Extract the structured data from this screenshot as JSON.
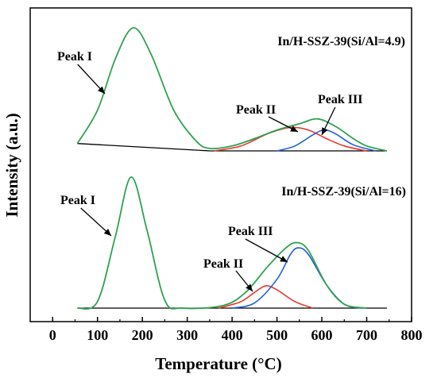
{
  "chart_data": {
    "type": "line",
    "xlabel": "Temperature (°C)",
    "ylabel": "Intensity (a.u.)",
    "xlim": [
      -50,
      800
    ],
    "xticks": [
      0,
      100,
      200,
      300,
      400,
      500,
      600,
      700,
      800
    ],
    "xtick_labels": [
      "0",
      "100",
      "200",
      "300",
      "400",
      "500",
      "600",
      "700",
      "800"
    ],
    "yticks": false,
    "grid": false,
    "legend": "none",
    "colors": {
      "total": "#2ca24f",
      "peak_ii": "#e8382c",
      "peak_iii": "#1f5fd6",
      "baseline": "#000000"
    },
    "panels": [
      {
        "label": "In/H-SSZ-39(Si/Al=4.9)",
        "baseline": [
          [
            55,
            0.06
          ],
          [
            350,
            0.0
          ],
          [
            745,
            0.0
          ]
        ],
        "total": [
          [
            55,
            0.06
          ],
          [
            100,
            0.33
          ],
          [
            140,
            0.75
          ],
          [
            180,
            1.0
          ],
          [
            220,
            0.78
          ],
          [
            270,
            0.33
          ],
          [
            320,
            0.08
          ],
          [
            350,
            0.02
          ],
          [
            400,
            0.04
          ],
          [
            450,
            0.1
          ],
          [
            500,
            0.17
          ],
          [
            550,
            0.22
          ],
          [
            590,
            0.26
          ],
          [
            630,
            0.2
          ],
          [
            670,
            0.1
          ],
          [
            700,
            0.04
          ],
          [
            745,
            0.0
          ]
        ],
        "peak_ii": [
          [
            360,
            0.0
          ],
          [
            420,
            0.04
          ],
          [
            480,
            0.14
          ],
          [
            530,
            0.19
          ],
          [
            570,
            0.17
          ],
          [
            610,
            0.1
          ],
          [
            650,
            0.04
          ],
          [
            700,
            0.0
          ]
        ],
        "peak_iii": [
          [
            500,
            0.0
          ],
          [
            540,
            0.04
          ],
          [
            580,
            0.13
          ],
          [
            605,
            0.17
          ],
          [
            630,
            0.14
          ],
          [
            670,
            0.05
          ],
          [
            720,
            0.0
          ]
        ],
        "annotations": [
          {
            "text": "Peak I",
            "x": 90,
            "y": 0.75
          },
          {
            "text": "Peak II",
            "x": 505,
            "y": 0.36
          },
          {
            "text": "Peak III",
            "x": 620,
            "y": 0.46
          }
        ]
      },
      {
        "label": "In/H-SSZ-39(Si/Al=16)",
        "baseline": [
          [
            55,
            0.0
          ],
          [
            745,
            0.0
          ]
        ],
        "total": [
          [
            55,
            0.0
          ],
          [
            100,
            0.05
          ],
          [
            140,
            0.55
          ],
          [
            175,
            1.0
          ],
          [
            210,
            0.6
          ],
          [
            250,
            0.06
          ],
          [
            290,
            0.0
          ],
          [
            380,
            0.02
          ],
          [
            430,
            0.12
          ],
          [
            480,
            0.32
          ],
          [
            520,
            0.46
          ],
          [
            545,
            0.5
          ],
          [
            570,
            0.44
          ],
          [
            610,
            0.18
          ],
          [
            650,
            0.03
          ],
          [
            700,
            0.0
          ]
        ],
        "peak_ii": [
          [
            370,
            0.0
          ],
          [
            420,
            0.05
          ],
          [
            450,
            0.12
          ],
          [
            475,
            0.17
          ],
          [
            500,
            0.14
          ],
          [
            540,
            0.05
          ],
          [
            580,
            0.0
          ]
        ],
        "peak_iii": [
          [
            400,
            0.0
          ],
          [
            450,
            0.04
          ],
          [
            500,
            0.22
          ],
          [
            530,
            0.41
          ],
          [
            548,
            0.46
          ],
          [
            570,
            0.41
          ],
          [
            610,
            0.18
          ],
          [
            650,
            0.03
          ],
          [
            690,
            0.0
          ]
        ],
        "annotations": [
          {
            "text": "Peak I",
            "x": 90,
            "y": 0.84
          },
          {
            "text": "Peak II",
            "x": 470,
            "y": 0.34
          },
          {
            "text": "Peak III",
            "x": 520,
            "y": 0.59
          }
        ]
      }
    ]
  }
}
